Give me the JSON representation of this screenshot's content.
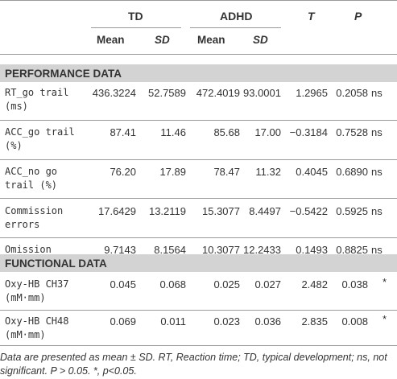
{
  "header": {
    "groups": [
      "TD",
      "ADHD"
    ],
    "stats": [
      "T",
      "P"
    ],
    "subheaders": [
      "Mean",
      "SD",
      "Mean",
      "SD"
    ]
  },
  "sections": [
    {
      "title": "PERFORMANCE DATA",
      "rows": [
        {
          "label": [
            "RT_go trail",
            "(ms)"
          ],
          "values": [
            "436.3224",
            "52.7589",
            "472.4019",
            "93.0001",
            "1.2965",
            "0.2058"
          ],
          "sig": "ns"
        },
        {
          "label": [
            "ACC_go trail",
            "(%)"
          ],
          "values": [
            "87.41",
            "11.46",
            "85.68",
            "17.00",
            "−0.3184",
            "0.7528"
          ],
          "sig": "ns"
        },
        {
          "label": [
            "ACC_no go",
            "trail (%)"
          ],
          "values": [
            "76.20",
            "17.89",
            "78.47",
            "11.32",
            "0.4045",
            "0.6890"
          ],
          "sig": "ns"
        },
        {
          "label": [
            "Commission",
            "errors"
          ],
          "values": [
            "17.6429",
            "13.2119",
            "15.3077",
            "8.4497",
            "−0.5422",
            "0.5925"
          ],
          "sig": "ns"
        },
        {
          "label": [
            "Omission",
            "errors"
          ],
          "values": [
            "9.7143",
            "8.1564",
            "10.3077",
            "12.2433",
            "0.1493",
            "0.8825"
          ],
          "sig": "ns"
        }
      ]
    },
    {
      "title": "FUNCTIONAL DATA",
      "rows": [
        {
          "label": [
            "Oxy-HB CH37",
            "(mM·mm)"
          ],
          "values": [
            "0.045",
            "0.068",
            "0.025",
            "0.027",
            "2.482",
            "0.038"
          ],
          "sig": "*"
        },
        {
          "label": [
            "Oxy-HB CH48",
            "(mM·mm)"
          ],
          "values": [
            "0.069",
            "0.011",
            "0.023",
            "0.036",
            "2.835",
            "0.008"
          ],
          "sig": "*"
        }
      ]
    }
  ],
  "footnote": {
    "line1": "Data are presented as mean ± SD. RT, Reaction time; TD, typical development; ns, not",
    "line2": "significant. P > 0.05. *, p<0.05."
  }
}
